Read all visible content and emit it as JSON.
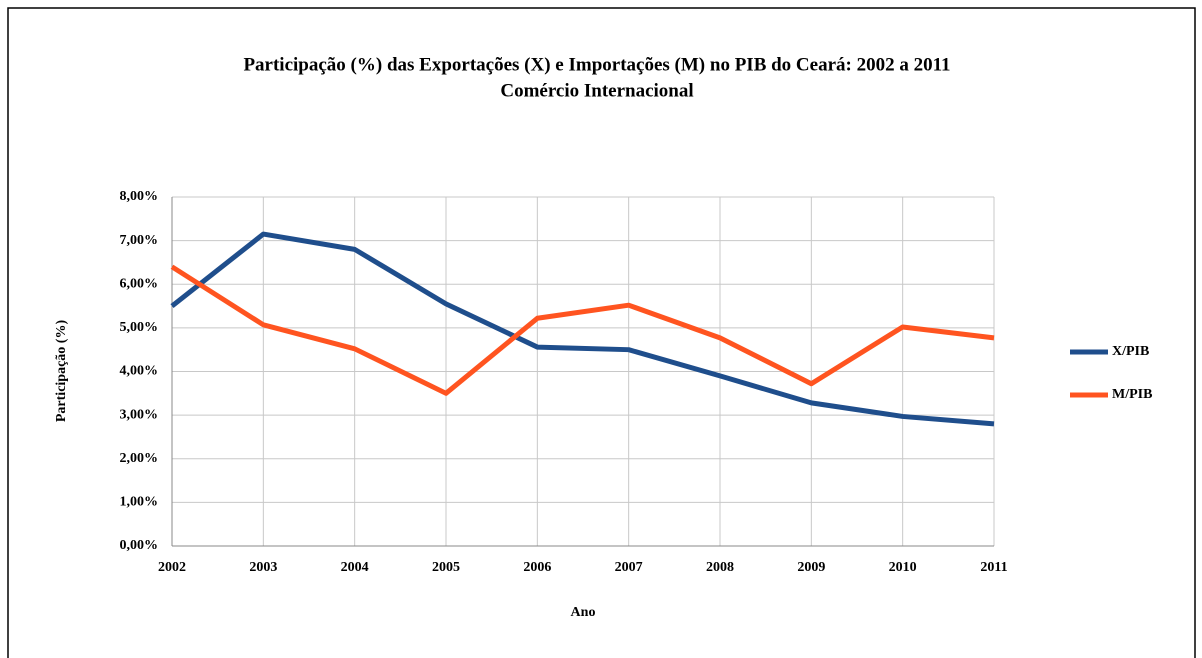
{
  "chart_data": {
    "type": "line",
    "title": "Participação (%) das Exportações (X) e Importações (M) no PIB do Ceará: 2002 a 2011",
    "subtitle": "Comércio Internacional",
    "x_label": "Ano",
    "y_label": "Participação (%)",
    "x": [
      2002,
      2003,
      2004,
      2005,
      2006,
      2007,
      2008,
      2009,
      2010,
      2011
    ],
    "xlim": [
      2002,
      2011
    ],
    "xticks": [
      2002,
      2003,
      2004,
      2005,
      2006,
      2007,
      2008,
      2009,
      2010,
      2011
    ],
    "ylim": [
      0,
      8
    ],
    "yticks": [
      {
        "value": 0,
        "label": "0,00%"
      },
      {
        "value": 1,
        "label": "1,00%"
      },
      {
        "value": 2,
        "label": "2,00%"
      },
      {
        "value": 3,
        "label": "3,00%"
      },
      {
        "value": 4,
        "label": "4,00%"
      },
      {
        "value": 5,
        "label": "5,00%"
      },
      {
        "value": 6,
        "label": "6,00%"
      },
      {
        "value": 7,
        "label": "7,00%"
      },
      {
        "value": 8,
        "label": "8,00%"
      }
    ],
    "grid": true,
    "legend": "right",
    "series": [
      {
        "name": "X/PIB",
        "color": "#1f4e8c",
        "values": [
          5.5,
          7.15,
          6.8,
          5.55,
          4.56,
          4.5,
          3.9,
          3.28,
          2.97,
          2.8
        ]
      },
      {
        "name": "M/PIB",
        "color": "#ff5420",
        "values": [
          6.4,
          5.07,
          4.52,
          3.5,
          5.22,
          5.52,
          4.77,
          3.72,
          5.02,
          4.77
        ]
      }
    ]
  }
}
